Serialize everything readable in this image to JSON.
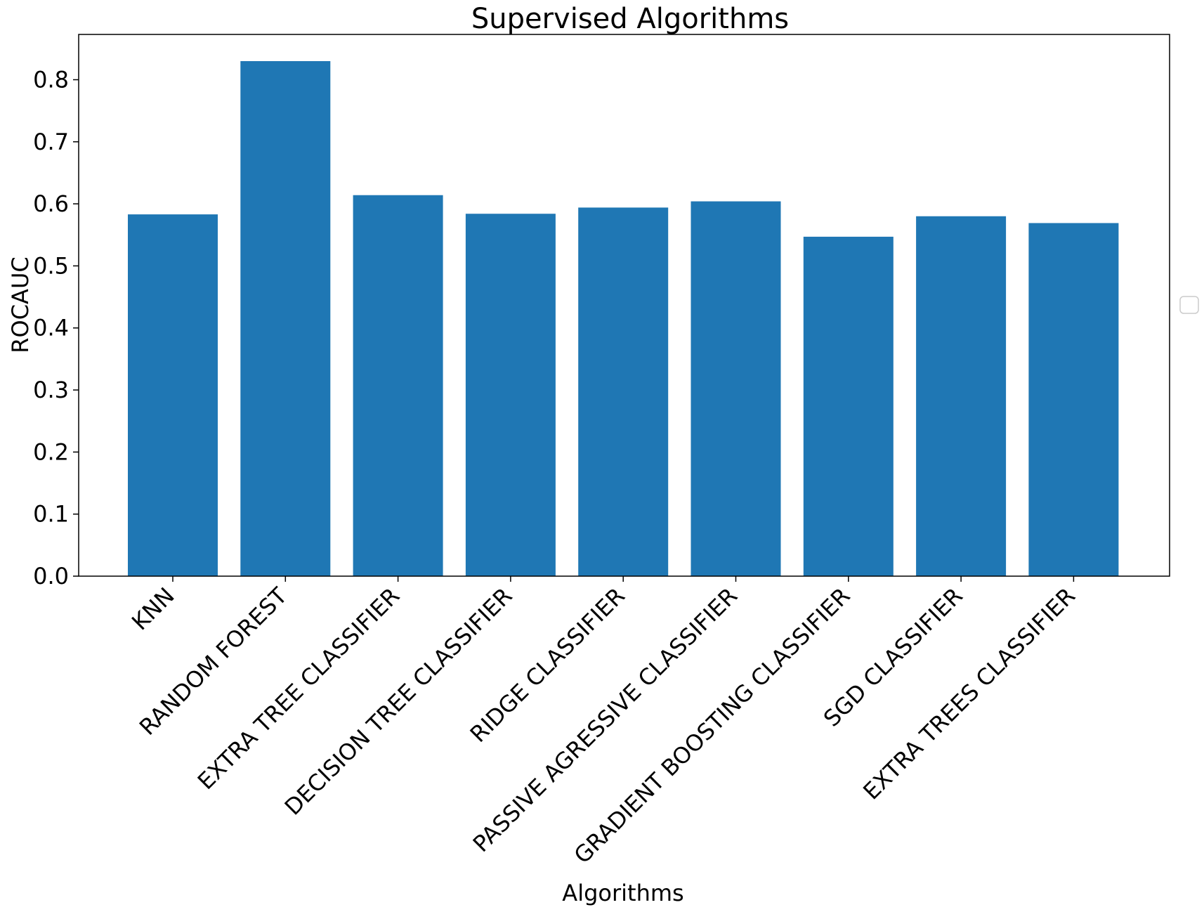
{
  "chart_data": {
    "type": "bar",
    "title": "Supervised Algorithms",
    "xlabel": "Algorithms",
    "ylabel": "ROCAUC",
    "categories": [
      "KNN",
      "RANDOM FOREST",
      "EXTRA TREE CLASSIFIER",
      "DECISION TREE CLASSIFIER",
      "RIDGE CLASSIFIER",
      "PASSIVE AGRESSIVE CLASSIFIER",
      "GRADIENT BOOSTING CLASSIFIER",
      "SGD CLASSIFIER",
      "EXTRA TREES CLASSIFIER"
    ],
    "values": [
      0.583,
      0.83,
      0.614,
      0.584,
      0.594,
      0.604,
      0.547,
      0.58,
      0.569
    ],
    "ylim": [
      0,
      0.873
    ],
    "yticks": [
      "0.0",
      "0.1",
      "0.2",
      "0.3",
      "0.4",
      "0.5",
      "0.6",
      "0.7",
      "0.8"
    ],
    "grid": false,
    "legend": {
      "placement": "right",
      "entries": []
    },
    "bar_color": "#1f77b4"
  }
}
